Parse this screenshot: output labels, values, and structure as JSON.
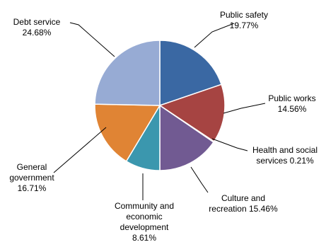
{
  "chart_data": {
    "type": "pie",
    "slices": [
      {
        "name": "Public safety",
        "value": 19.77,
        "label_lines": [
          "Public safety",
          "19.77%"
        ],
        "color": "#3A68A3"
      },
      {
        "name": "Public works",
        "value": 14.56,
        "label_lines": [
          "Public works",
          "14.56%"
        ],
        "color": "#A64442"
      },
      {
        "name": "Health and social services",
        "value": 0.21,
        "label_lines": [
          "Health and social",
          "services 0.21%"
        ],
        "color": "#8AA44A"
      },
      {
        "name": "Culture and recreation",
        "value": 15.46,
        "label_lines": [
          "Culture and",
          "recreation 15.46%"
        ],
        "color": "#715A92"
      },
      {
        "name": "Community and economic development",
        "value": 8.61,
        "label_lines": [
          "Community and",
          "economic",
          "development",
          "8.61%"
        ],
        "color": "#3B97AE"
      },
      {
        "name": "General government",
        "value": 16.71,
        "label_lines": [
          "General",
          "government",
          "16.71%"
        ],
        "color": "#E08434"
      },
      {
        "name": "Debt service",
        "value": 24.68,
        "label_lines": [
          "Debt service",
          "24.68%"
        ],
        "color": "#97ABD4"
      }
    ]
  }
}
